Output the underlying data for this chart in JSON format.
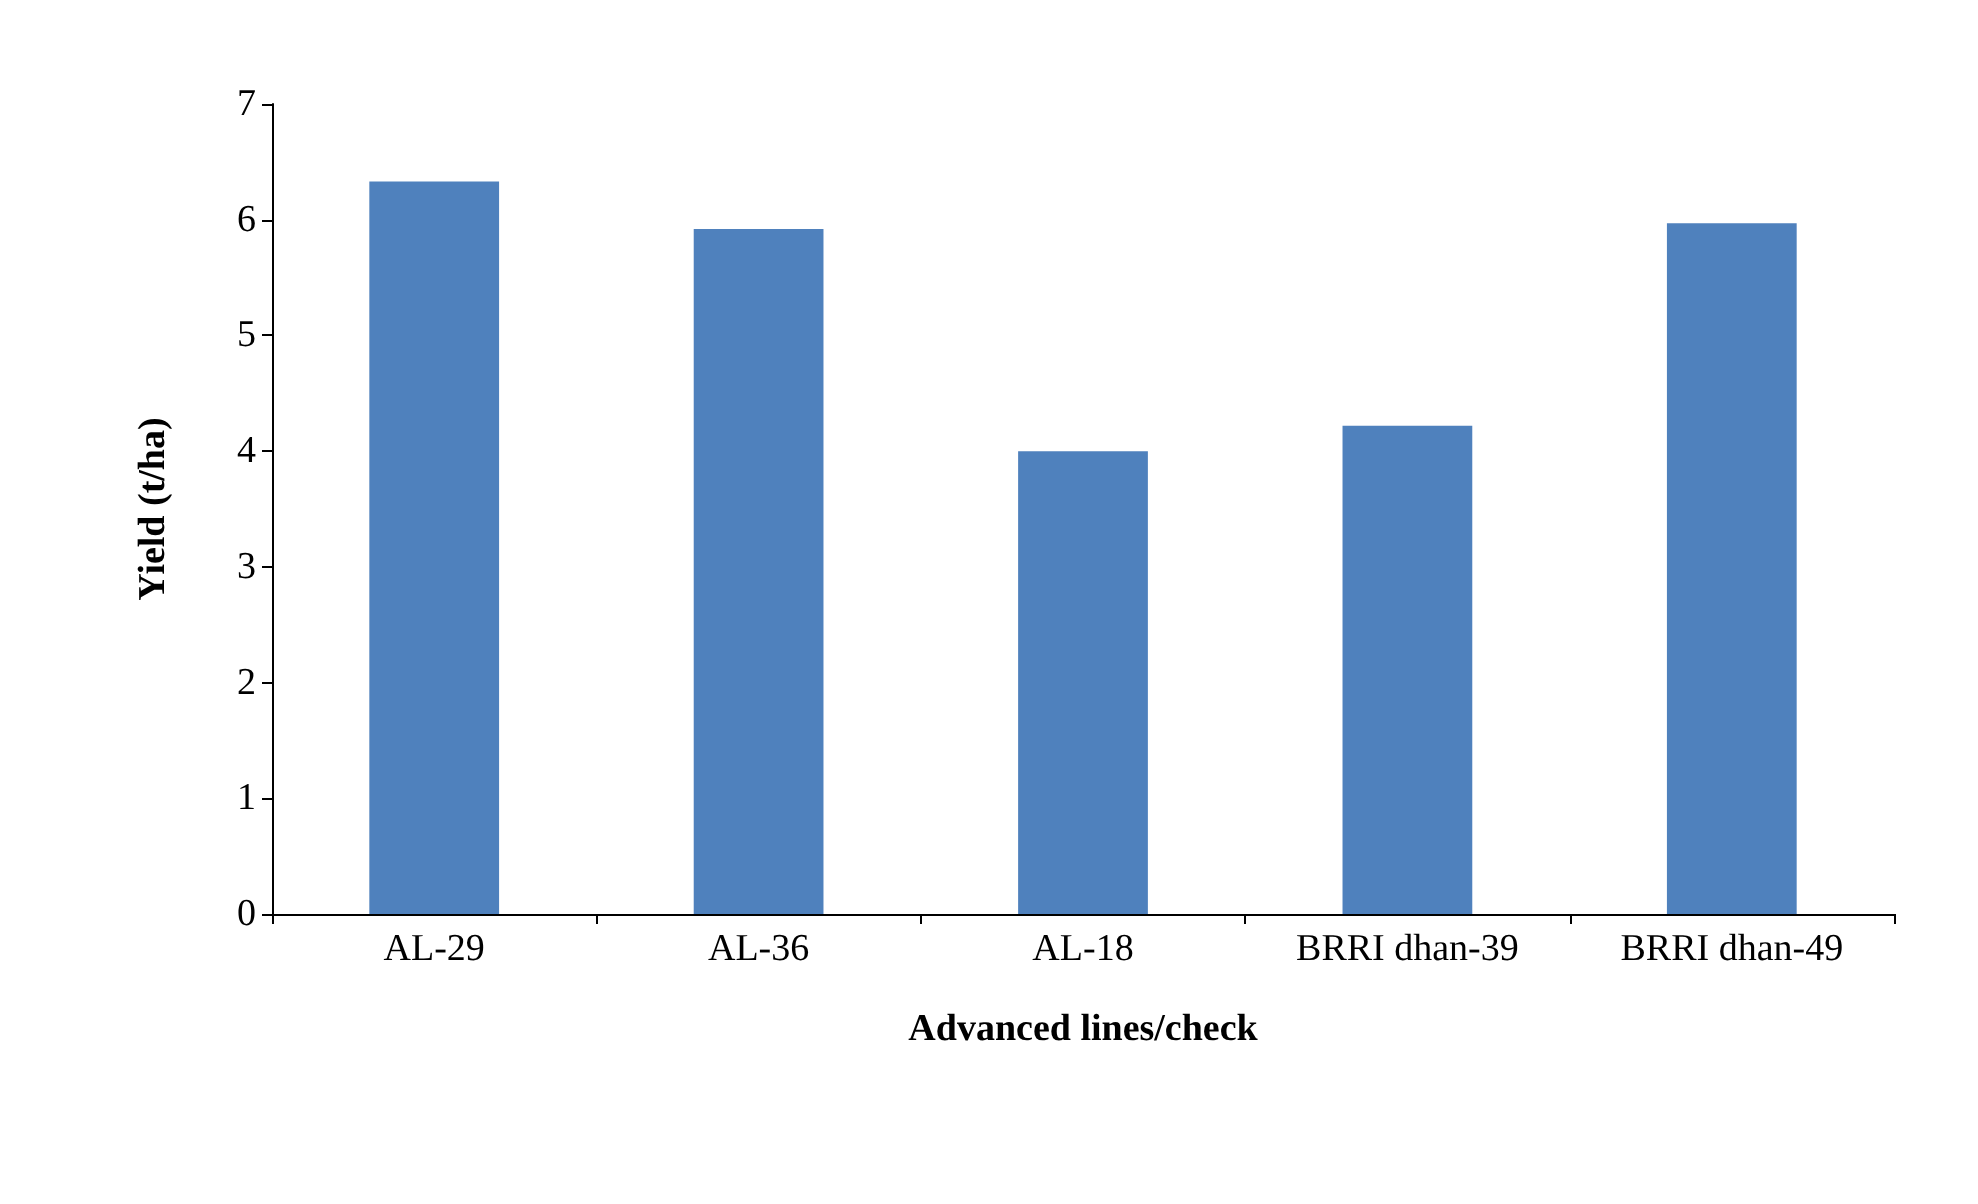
{
  "chart_data": {
    "type": "bar",
    "xlabel": "Advanced lines/check",
    "ylabel": "Yield (t/ha)",
    "categories": [
      "AL-29",
      "AL-36",
      "AL-18",
      "BRRI dhan-39",
      "BRRI dhan-49"
    ],
    "values": [
      6.33,
      5.92,
      4.0,
      4.22,
      5.97
    ],
    "color": "#4f81bd",
    "ylim": [
      0,
      7
    ],
    "yticks": [
      0,
      1,
      2,
      3,
      4,
      5,
      6,
      7
    ],
    "grid": false
  }
}
